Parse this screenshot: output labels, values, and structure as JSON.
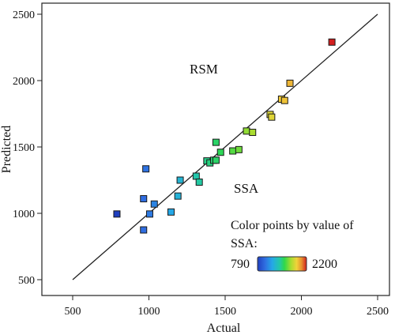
{
  "chart_data": {
    "type": "scatter",
    "title": "",
    "xlabel": "Actual",
    "ylabel": "Predicted",
    "xlim": [
      400,
      2550
    ],
    "ylim": [
      400,
      2550
    ],
    "x_ticks": [
      500,
      1000,
      1500,
      2000,
      2500
    ],
    "y_ticks": [
      500,
      1000,
      1500,
      2000,
      2500
    ],
    "reference_line": {
      "from": [
        500,
        500
      ],
      "to": [
        2500,
        2500
      ]
    },
    "annotations": {
      "model": "RSM",
      "variable": "SSA"
    },
    "legend": {
      "line1": "Color points by value of",
      "line2": "SSA:",
      "min_label": "790",
      "max_label": "2200",
      "placement": "bottom-right"
    },
    "color_scale": [
      "#1f3fbf",
      "#2f6de0",
      "#25a8e8",
      "#22c8a8",
      "#2fd84a",
      "#a6dd30",
      "#f1d23a",
      "#e7902e",
      "#d21e1e"
    ],
    "points": [
      {
        "x": 790,
        "y": 995
      },
      {
        "x": 965,
        "y": 875
      },
      {
        "x": 965,
        "y": 1110
      },
      {
        "x": 980,
        "y": 1335
      },
      {
        "x": 1005,
        "y": 995
      },
      {
        "x": 1035,
        "y": 1070
      },
      {
        "x": 1145,
        "y": 1010
      },
      {
        "x": 1190,
        "y": 1130
      },
      {
        "x": 1205,
        "y": 1250
      },
      {
        "x": 1310,
        "y": 1280
      },
      {
        "x": 1330,
        "y": 1235
      },
      {
        "x": 1380,
        "y": 1395
      },
      {
        "x": 1400,
        "y": 1380
      },
      {
        "x": 1425,
        "y": 1400
      },
      {
        "x": 1440,
        "y": 1400
      },
      {
        "x": 1440,
        "y": 1535
      },
      {
        "x": 1470,
        "y": 1460
      },
      {
        "x": 1550,
        "y": 1470
      },
      {
        "x": 1590,
        "y": 1480
      },
      {
        "x": 1640,
        "y": 1620
      },
      {
        "x": 1680,
        "y": 1610
      },
      {
        "x": 1795,
        "y": 1745
      },
      {
        "x": 1805,
        "y": 1725
      },
      {
        "x": 1870,
        "y": 1860
      },
      {
        "x": 1890,
        "y": 1850
      },
      {
        "x": 1925,
        "y": 1980
      },
      {
        "x": 2200,
        "y": 2290
      }
    ]
  }
}
